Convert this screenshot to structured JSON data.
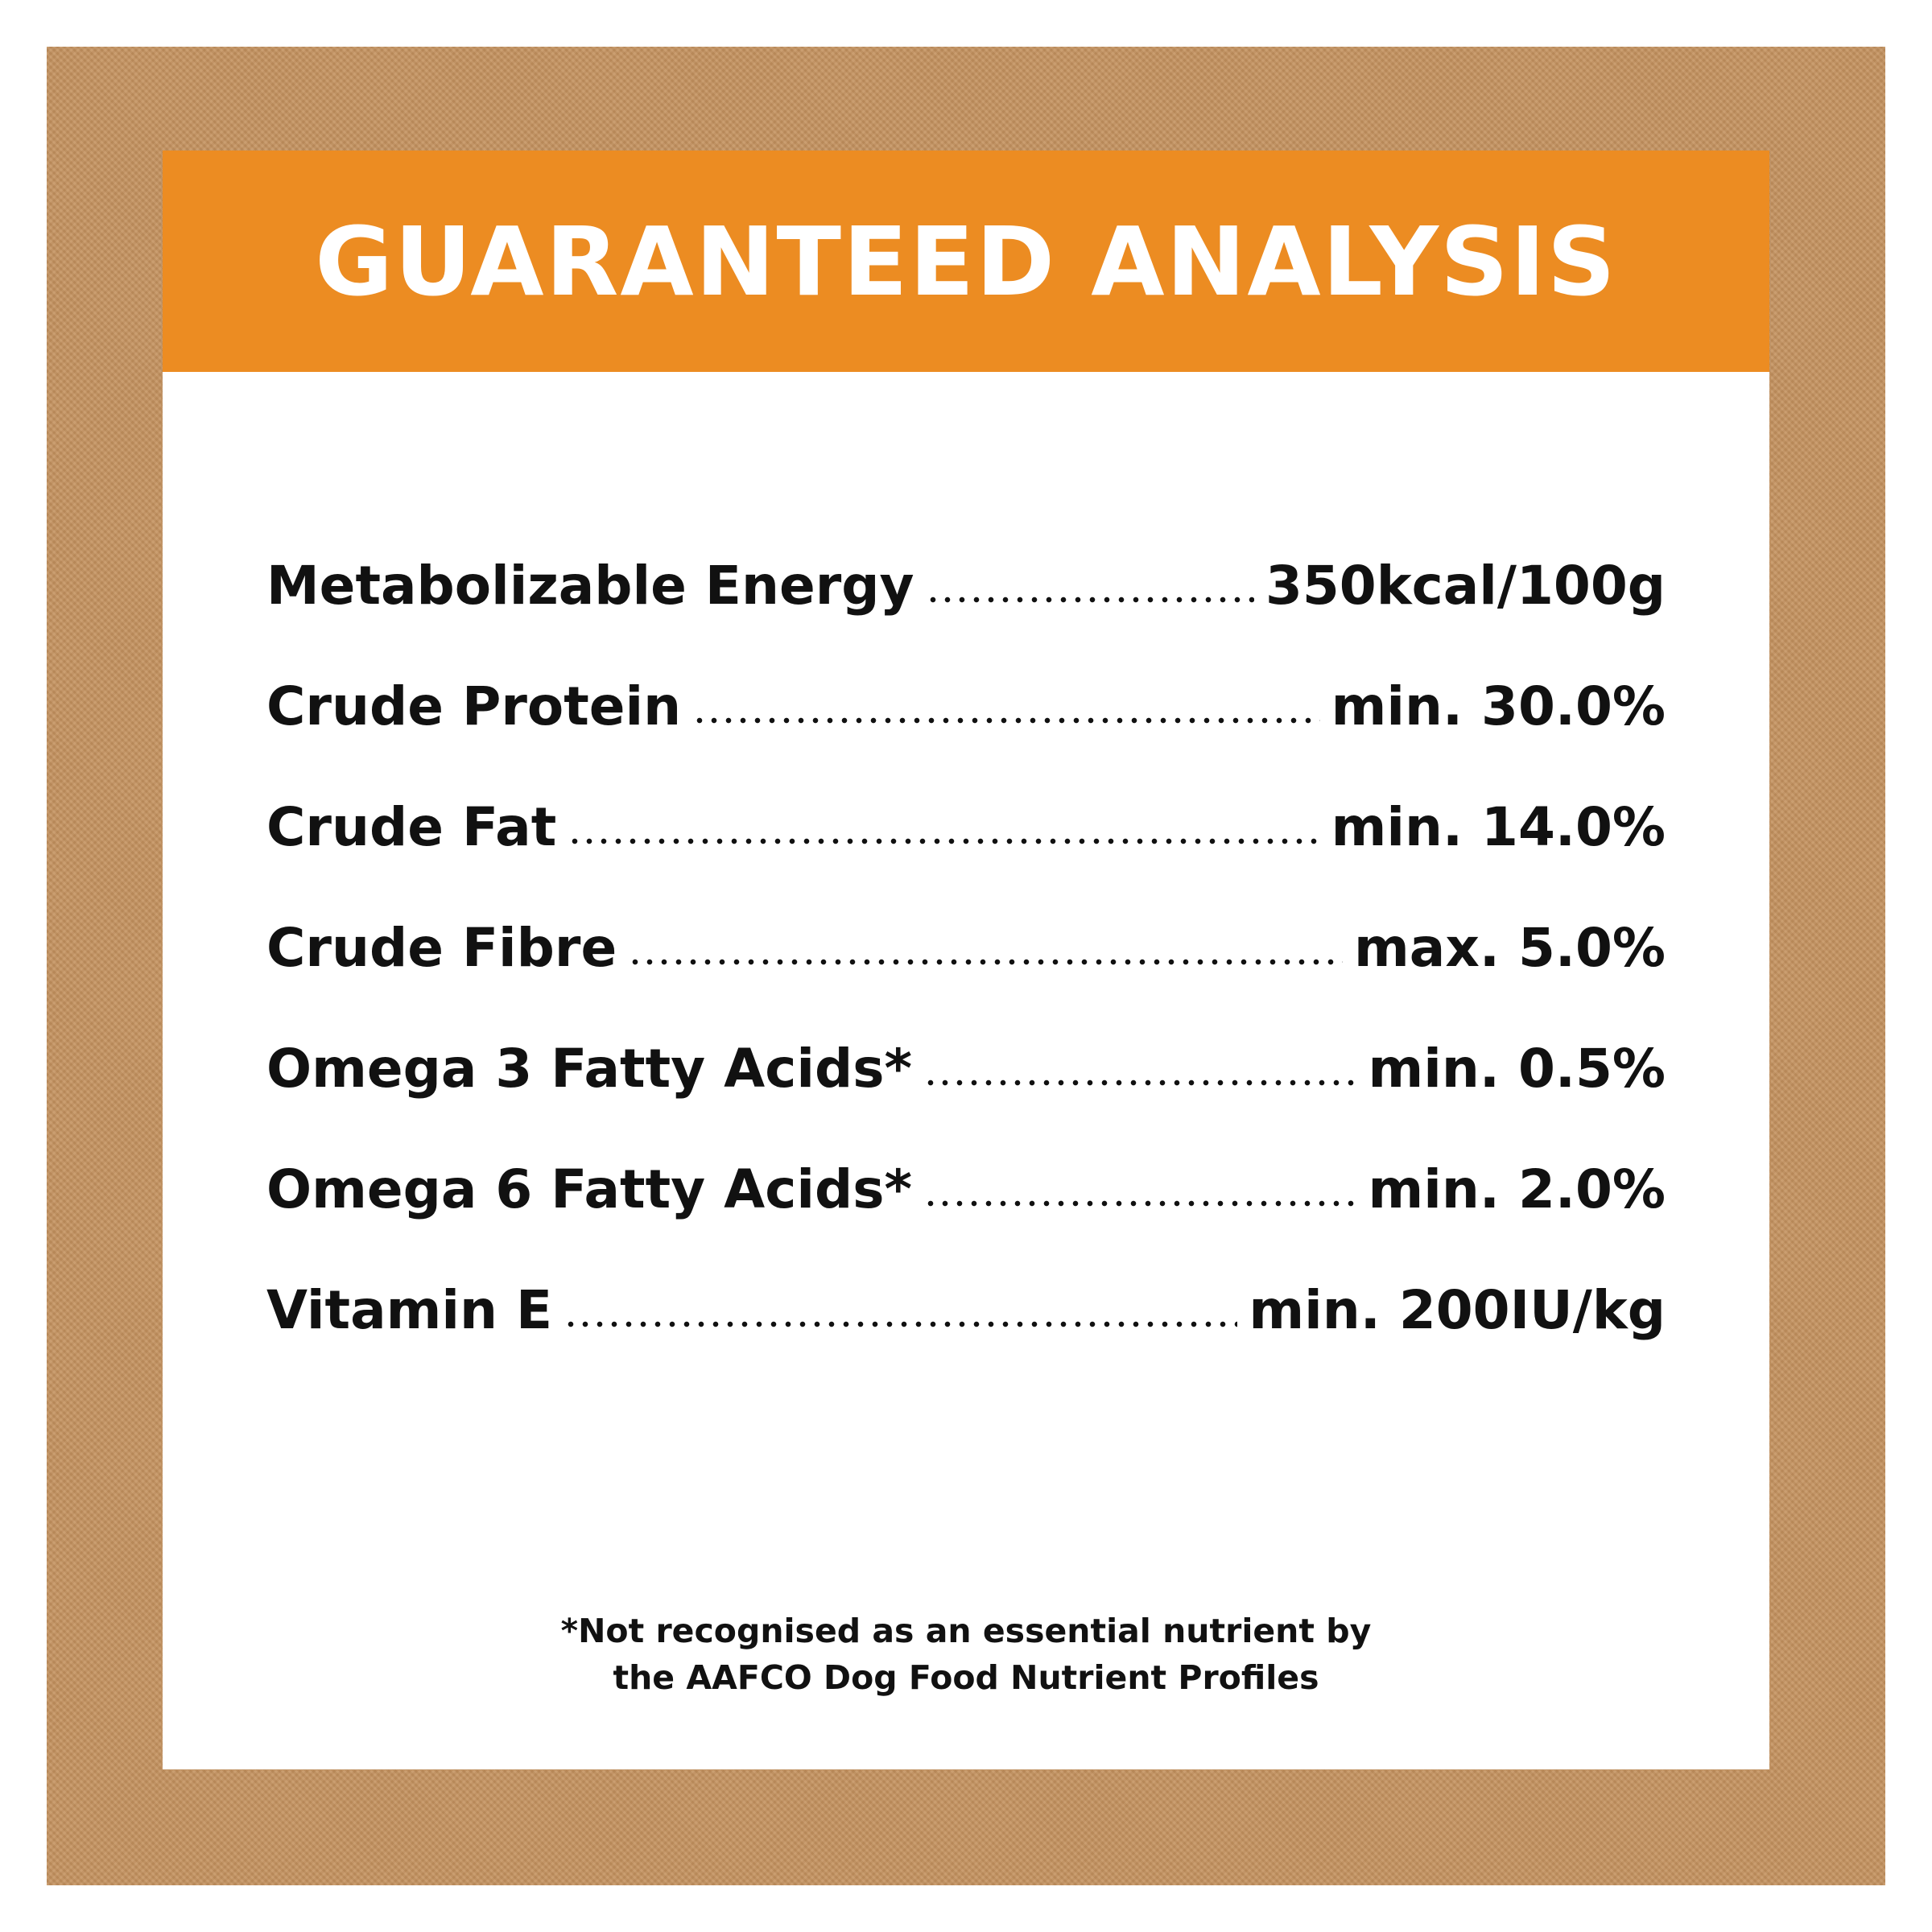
{
  "header": {
    "title": "GUARANTEED ANALYSIS"
  },
  "rows": [
    {
      "label": "Metabolizable Energy",
      "value": "350kcal/100g"
    },
    {
      "label": "Crude Protein",
      "value": "min. 30.0%"
    },
    {
      "label": "Crude Fat",
      "value": "min. 14.0%"
    },
    {
      "label": "Crude Fibre",
      "value": "max. 5.0%"
    },
    {
      "label": "Omega 3 Fatty Acids*",
      "value": "min. 0.5%"
    },
    {
      "label": "Omega 6 Fatty Acids*",
      "value": "min. 2.0%"
    },
    {
      "label": "Vitamin E",
      "value": "min. 200IU/kg"
    }
  ],
  "footnote": [
    "*Not recognised as an essential nutrient by",
    "the AAFCO Dog Food Nutrient Profiles"
  ]
}
